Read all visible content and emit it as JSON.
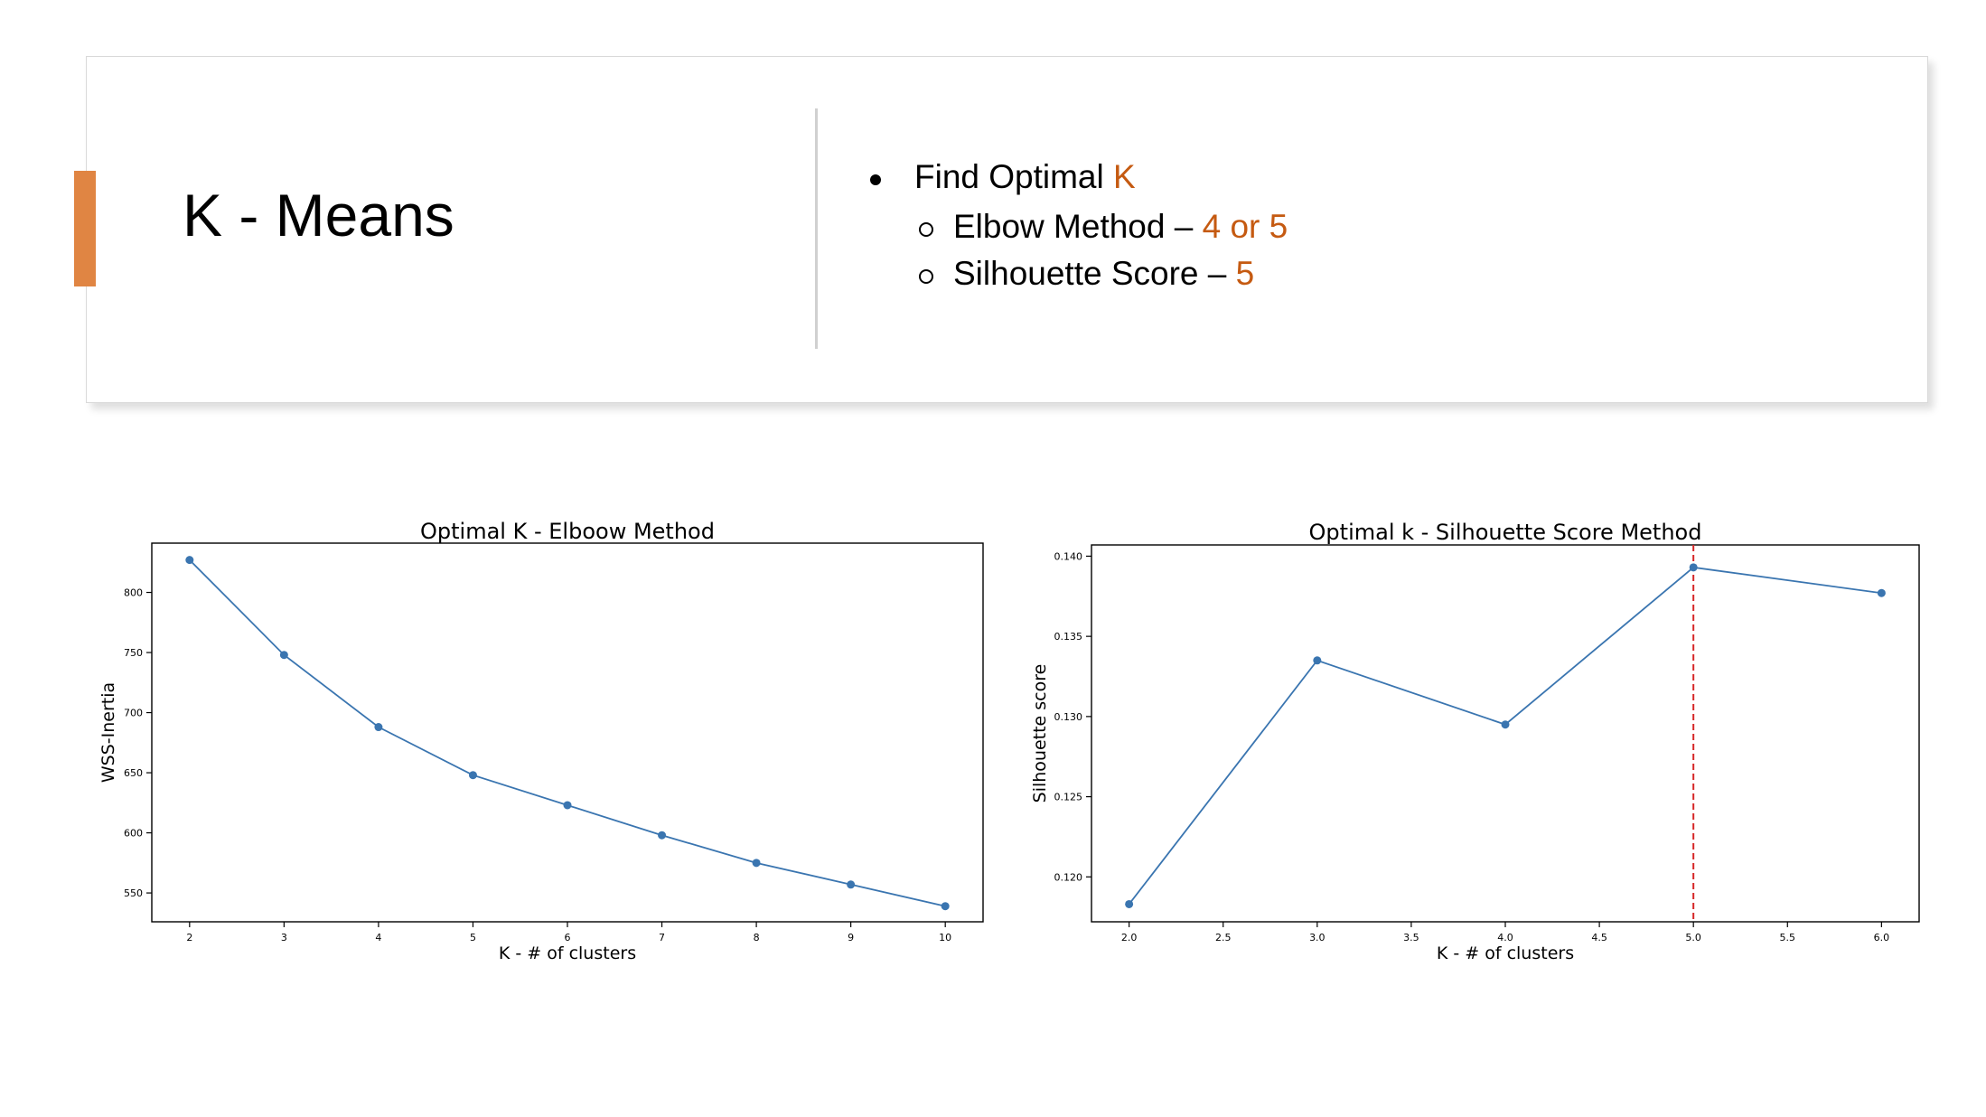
{
  "slide": {
    "title": "K - Means",
    "bullet1": {
      "prefix": "Find Optimal ",
      "highlight": "K"
    },
    "bullet2": {
      "prefix": "Elbow Method – ",
      "highlight": "4 or 5"
    },
    "bullet3": {
      "prefix": "Silhouette Score – ",
      "highlight": "5"
    },
    "colors": {
      "accent": "#E08543",
      "highlight": "#C55A11",
      "line": "#3A75B0",
      "marker": "#D62728"
    }
  },
  "chart_data": [
    {
      "type": "line",
      "title": "Optimal K - Elboow Method",
      "xlabel": "K - # of clusters",
      "ylabel": "WSS-Inertia",
      "x": [
        2,
        3,
        4,
        5,
        6,
        7,
        8,
        9,
        10
      ],
      "y": [
        827,
        748,
        688,
        648,
        623,
        598,
        575,
        557,
        539
      ],
      "xlim": [
        1.6,
        10.4
      ],
      "ylim": [
        526,
        841
      ],
      "xticks": [
        2,
        3,
        4,
        5,
        6,
        7,
        8,
        9,
        10
      ],
      "xtick_labels": [
        "2",
        "3",
        "4",
        "5",
        "6",
        "7",
        "8",
        "9",
        "10"
      ],
      "yticks": [
        550,
        600,
        650,
        700,
        750,
        800
      ],
      "ytick_labels": [
        "550",
        "600",
        "650",
        "700",
        "750",
        "800"
      ],
      "grid": false,
      "markers": true
    },
    {
      "type": "line",
      "title": "Optimal k - Silhouette Score Method",
      "xlabel": "K - # of clusters",
      "ylabel": "Silhouette score",
      "x": [
        2.0,
        3.0,
        4.0,
        5.0,
        6.0
      ],
      "y": [
        0.1183,
        0.1335,
        0.1295,
        0.1393,
        0.1377
      ],
      "xlim": [
        1.8,
        6.2
      ],
      "ylim": [
        0.1172,
        0.1407
      ],
      "xticks": [
        2.0,
        2.5,
        3.0,
        3.5,
        4.0,
        4.5,
        5.0,
        5.5,
        6.0
      ],
      "xtick_labels": [
        "2.0",
        "2.5",
        "3.0",
        "3.5",
        "4.0",
        "4.5",
        "5.0",
        "5.5",
        "6.0"
      ],
      "yticks": [
        0.12,
        0.125,
        0.13,
        0.135,
        0.14
      ],
      "ytick_labels": [
        "0.120",
        "0.125",
        "0.130",
        "0.135",
        "0.140"
      ],
      "vline": 5.0,
      "grid": false,
      "markers": true
    }
  ]
}
